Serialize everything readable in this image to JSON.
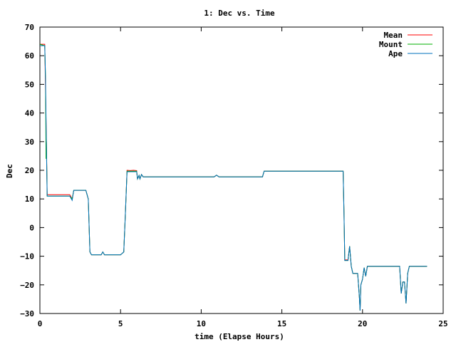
{
  "chart_data": {
    "type": "line",
    "title": "1: Dec vs. Time",
    "xlabel": "time (Elapse Hours)",
    "ylabel": "Dec",
    "xlim": [
      0,
      25
    ],
    "ylim": [
      -30,
      70
    ],
    "xticks": [
      0,
      5,
      10,
      15,
      20,
      25
    ],
    "yticks": [
      -30,
      -20,
      -10,
      0,
      10,
      20,
      30,
      40,
      50,
      60,
      70
    ],
    "grid": false,
    "legend_position": "top-right",
    "series": [
      {
        "name": "Mean",
        "color": "#ff0000",
        "points": [
          [
            0.0,
            64.0
          ],
          [
            0.3,
            64.0
          ],
          [
            0.4,
            30.0
          ],
          [
            0.45,
            11.5
          ],
          [
            1.85,
            11.5
          ],
          [
            2.0,
            10.0
          ],
          [
            2.1,
            13.0
          ],
          [
            2.85,
            13.0
          ],
          [
            3.0,
            10.0
          ],
          [
            3.1,
            -8.5
          ],
          [
            3.2,
            -9.5
          ],
          [
            3.8,
            -9.5
          ],
          [
            3.9,
            -8.5
          ],
          [
            4.0,
            -9.5
          ],
          [
            5.0,
            -9.5
          ],
          [
            5.2,
            -8.5
          ],
          [
            5.3,
            5.0
          ],
          [
            5.4,
            20.0
          ],
          [
            5.6,
            19.9
          ],
          [
            5.8,
            20.0
          ],
          [
            6.0,
            19.9
          ],
          [
            6.05,
            17.0
          ],
          [
            6.15,
            18.2
          ],
          [
            6.2,
            17.0
          ],
          [
            6.3,
            18.5
          ],
          [
            6.4,
            17.7
          ],
          [
            10.8,
            17.7
          ],
          [
            10.95,
            18.3
          ],
          [
            11.1,
            17.7
          ],
          [
            13.8,
            17.7
          ],
          [
            13.9,
            19.7
          ],
          [
            18.8,
            19.7
          ],
          [
            18.85,
            5.0
          ],
          [
            18.9,
            -11.3
          ],
          [
            19.1,
            -11.3
          ],
          [
            19.2,
            -6.5
          ],
          [
            19.3,
            -13.5
          ],
          [
            19.4,
            -16.0
          ],
          [
            19.7,
            -16.0
          ],
          [
            19.8,
            -24.0
          ],
          [
            19.85,
            -29.0
          ],
          [
            19.9,
            -20.0
          ],
          [
            20.0,
            -18.0
          ],
          [
            20.1,
            -14.0
          ],
          [
            20.2,
            -17.0
          ],
          [
            20.3,
            -13.5
          ],
          [
            21.0,
            -13.5
          ],
          [
            22.3,
            -13.5
          ],
          [
            22.4,
            -23.0
          ],
          [
            22.5,
            -19.0
          ],
          [
            22.6,
            -19.0
          ],
          [
            22.7,
            -26.5
          ],
          [
            22.8,
            -16.0
          ],
          [
            22.9,
            -13.5
          ],
          [
            24.0,
            -13.5
          ]
        ]
      },
      {
        "name": "Mount",
        "color": "#00b000",
        "points": [
          [
            0.0,
            64.0
          ],
          [
            0.3,
            63.5
          ],
          [
            0.35,
            52.0
          ],
          [
            0.38,
            24.0
          ],
          [
            0.4,
            30.0
          ],
          [
            0.45,
            11.0
          ],
          [
            1.85,
            11.0
          ],
          [
            2.0,
            10.0
          ],
          [
            2.1,
            13.0
          ],
          [
            2.85,
            13.0
          ],
          [
            3.0,
            10.0
          ],
          [
            3.1,
            -8.5
          ],
          [
            3.2,
            -9.5
          ],
          [
            3.8,
            -9.5
          ],
          [
            3.9,
            -8.5
          ],
          [
            4.0,
            -9.5
          ],
          [
            5.0,
            -9.5
          ],
          [
            5.2,
            -8.5
          ],
          [
            5.3,
            5.0
          ],
          [
            5.4,
            19.7
          ],
          [
            6.0,
            19.7
          ],
          [
            6.05,
            17.0
          ],
          [
            6.15,
            18.2
          ],
          [
            6.2,
            17.0
          ],
          [
            6.3,
            18.5
          ],
          [
            6.4,
            17.7
          ],
          [
            10.8,
            17.7
          ],
          [
            10.95,
            18.3
          ],
          [
            11.1,
            17.7
          ],
          [
            13.8,
            17.7
          ],
          [
            13.9,
            19.7
          ],
          [
            18.8,
            19.7
          ],
          [
            18.85,
            5.0
          ],
          [
            18.9,
            -11.5
          ],
          [
            19.1,
            -11.5
          ],
          [
            19.2,
            -6.5
          ],
          [
            19.3,
            -13.5
          ],
          [
            19.4,
            -16.0
          ],
          [
            19.7,
            -16.0
          ],
          [
            19.8,
            -24.0
          ],
          [
            19.85,
            -29.0
          ],
          [
            19.9,
            -20.0
          ],
          [
            20.0,
            -18.0
          ],
          [
            20.1,
            -14.0
          ],
          [
            20.2,
            -17.0
          ],
          [
            20.3,
            -13.5
          ],
          [
            21.0,
            -13.5
          ],
          [
            22.3,
            -13.5
          ],
          [
            22.4,
            -23.0
          ],
          [
            22.5,
            -19.0
          ],
          [
            22.6,
            -19.0
          ],
          [
            22.7,
            -26.5
          ],
          [
            22.8,
            -16.0
          ],
          [
            22.9,
            -13.5
          ],
          [
            24.0,
            -13.5
          ]
        ]
      },
      {
        "name": "Ape",
        "color": "#0072bd",
        "points": [
          [
            0.0,
            63.5
          ],
          [
            0.3,
            63.5
          ],
          [
            0.35,
            52.0
          ],
          [
            0.4,
            29.0
          ],
          [
            0.45,
            11.0
          ],
          [
            1.85,
            11.0
          ],
          [
            2.0,
            9.5
          ],
          [
            2.1,
            13.0
          ],
          [
            2.85,
            13.0
          ],
          [
            3.0,
            10.0
          ],
          [
            3.1,
            -8.5
          ],
          [
            3.2,
            -9.5
          ],
          [
            3.8,
            -9.5
          ],
          [
            3.9,
            -8.5
          ],
          [
            4.0,
            -9.5
          ],
          [
            5.0,
            -9.5
          ],
          [
            5.2,
            -8.5
          ],
          [
            5.3,
            5.0
          ],
          [
            5.4,
            19.5
          ],
          [
            6.0,
            19.5
          ],
          [
            6.05,
            17.0
          ],
          [
            6.15,
            18.2
          ],
          [
            6.2,
            17.0
          ],
          [
            6.3,
            18.5
          ],
          [
            6.4,
            17.7
          ],
          [
            10.8,
            17.7
          ],
          [
            10.95,
            18.3
          ],
          [
            11.1,
            17.7
          ],
          [
            13.8,
            17.7
          ],
          [
            13.9,
            19.7
          ],
          [
            18.8,
            19.7
          ],
          [
            18.85,
            5.0
          ],
          [
            18.9,
            -11.5
          ],
          [
            19.1,
            -11.5
          ],
          [
            19.2,
            -6.5
          ],
          [
            19.3,
            -13.5
          ],
          [
            19.4,
            -16.0
          ],
          [
            19.7,
            -16.0
          ],
          [
            19.8,
            -24.0
          ],
          [
            19.85,
            -29.0
          ],
          [
            19.9,
            -20.0
          ],
          [
            20.0,
            -18.0
          ],
          [
            20.1,
            -14.0
          ],
          [
            20.2,
            -17.0
          ],
          [
            20.3,
            -13.5
          ],
          [
            21.0,
            -13.5
          ],
          [
            22.3,
            -13.5
          ],
          [
            22.4,
            -23.0
          ],
          [
            22.5,
            -19.0
          ],
          [
            22.6,
            -19.0
          ],
          [
            22.7,
            -26.5
          ],
          [
            22.8,
            -16.0
          ],
          [
            22.9,
            -13.5
          ],
          [
            24.0,
            -13.5
          ]
        ]
      }
    ]
  }
}
